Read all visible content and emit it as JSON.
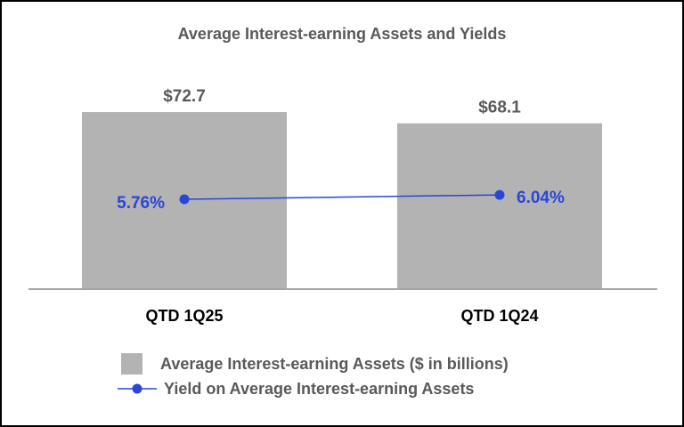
{
  "chart_data": {
    "type": "bar",
    "title": "Average Interest-earning Assets and Yields",
    "categories": [
      "QTD 1Q25",
      "QTD 1Q24"
    ],
    "series": [
      {
        "name": "Average Interest-earning Assets ($ in billions)",
        "type": "bar",
        "values": [
          72.7,
          68.1
        ],
        "labels": [
          "$72.7",
          "$68.1"
        ]
      },
      {
        "name": "Yield on Average Interest-earning Assets",
        "type": "line",
        "values": [
          5.76,
          6.04
        ],
        "labels": [
          "5.76%",
          "6.04%"
        ]
      }
    ],
    "bar_ylim": [
      0,
      80
    ],
    "line_ylim": [
      0,
      10
    ],
    "legend_position": "bottom",
    "grid": false
  },
  "colors": {
    "bar": "#b3b3b3",
    "line": "#2b45d8",
    "axis": "#a6a6a6"
  }
}
